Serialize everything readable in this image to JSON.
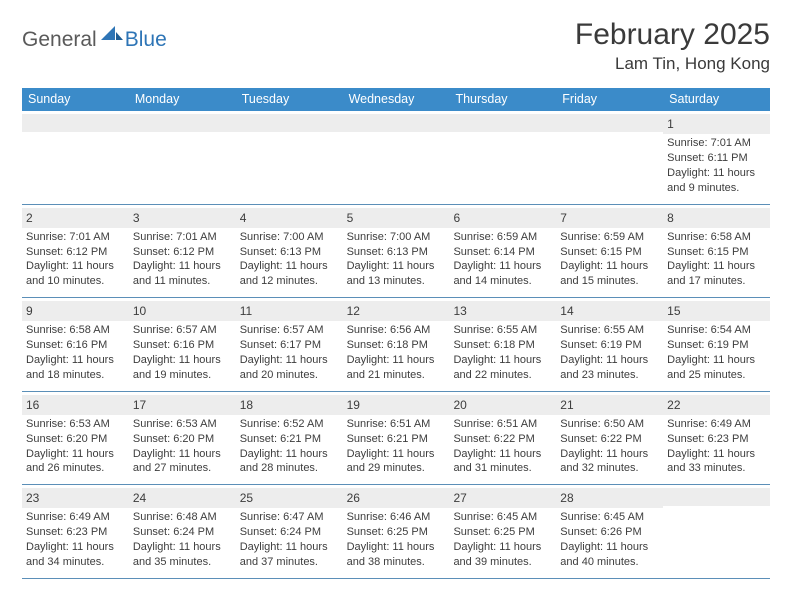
{
  "brand": {
    "part1": "General",
    "part2": "Blue"
  },
  "colors": {
    "header_bar": "#3b8bc9",
    "daynum_bg": "#ededed",
    "rule": "#5b8fb8",
    "brand_blue": "#2e75b6",
    "text": "#3a3a3a"
  },
  "title": "February 2025",
  "location": "Lam Tin, Hong Kong",
  "day_names": [
    "Sunday",
    "Monday",
    "Tuesday",
    "Wednesday",
    "Thursday",
    "Friday",
    "Saturday"
  ],
  "weeks": [
    [
      {
        "n": "",
        "sr": "",
        "ss": "",
        "dl": ""
      },
      {
        "n": "",
        "sr": "",
        "ss": "",
        "dl": ""
      },
      {
        "n": "",
        "sr": "",
        "ss": "",
        "dl": ""
      },
      {
        "n": "",
        "sr": "",
        "ss": "",
        "dl": ""
      },
      {
        "n": "",
        "sr": "",
        "ss": "",
        "dl": ""
      },
      {
        "n": "",
        "sr": "",
        "ss": "",
        "dl": ""
      },
      {
        "n": "1",
        "sr": "Sunrise: 7:01 AM",
        "ss": "Sunset: 6:11 PM",
        "dl": "Daylight: 11 hours and 9 minutes."
      }
    ],
    [
      {
        "n": "2",
        "sr": "Sunrise: 7:01 AM",
        "ss": "Sunset: 6:12 PM",
        "dl": "Daylight: 11 hours and 10 minutes."
      },
      {
        "n": "3",
        "sr": "Sunrise: 7:01 AM",
        "ss": "Sunset: 6:12 PM",
        "dl": "Daylight: 11 hours and 11 minutes."
      },
      {
        "n": "4",
        "sr": "Sunrise: 7:00 AM",
        "ss": "Sunset: 6:13 PM",
        "dl": "Daylight: 11 hours and 12 minutes."
      },
      {
        "n": "5",
        "sr": "Sunrise: 7:00 AM",
        "ss": "Sunset: 6:13 PM",
        "dl": "Daylight: 11 hours and 13 minutes."
      },
      {
        "n": "6",
        "sr": "Sunrise: 6:59 AM",
        "ss": "Sunset: 6:14 PM",
        "dl": "Daylight: 11 hours and 14 minutes."
      },
      {
        "n": "7",
        "sr": "Sunrise: 6:59 AM",
        "ss": "Sunset: 6:15 PM",
        "dl": "Daylight: 11 hours and 15 minutes."
      },
      {
        "n": "8",
        "sr": "Sunrise: 6:58 AM",
        "ss": "Sunset: 6:15 PM",
        "dl": "Daylight: 11 hours and 17 minutes."
      }
    ],
    [
      {
        "n": "9",
        "sr": "Sunrise: 6:58 AM",
        "ss": "Sunset: 6:16 PM",
        "dl": "Daylight: 11 hours and 18 minutes."
      },
      {
        "n": "10",
        "sr": "Sunrise: 6:57 AM",
        "ss": "Sunset: 6:16 PM",
        "dl": "Daylight: 11 hours and 19 minutes."
      },
      {
        "n": "11",
        "sr": "Sunrise: 6:57 AM",
        "ss": "Sunset: 6:17 PM",
        "dl": "Daylight: 11 hours and 20 minutes."
      },
      {
        "n": "12",
        "sr": "Sunrise: 6:56 AM",
        "ss": "Sunset: 6:18 PM",
        "dl": "Daylight: 11 hours and 21 minutes."
      },
      {
        "n": "13",
        "sr": "Sunrise: 6:55 AM",
        "ss": "Sunset: 6:18 PM",
        "dl": "Daylight: 11 hours and 22 minutes."
      },
      {
        "n": "14",
        "sr": "Sunrise: 6:55 AM",
        "ss": "Sunset: 6:19 PM",
        "dl": "Daylight: 11 hours and 23 minutes."
      },
      {
        "n": "15",
        "sr": "Sunrise: 6:54 AM",
        "ss": "Sunset: 6:19 PM",
        "dl": "Daylight: 11 hours and 25 minutes."
      }
    ],
    [
      {
        "n": "16",
        "sr": "Sunrise: 6:53 AM",
        "ss": "Sunset: 6:20 PM",
        "dl": "Daylight: 11 hours and 26 minutes."
      },
      {
        "n": "17",
        "sr": "Sunrise: 6:53 AM",
        "ss": "Sunset: 6:20 PM",
        "dl": "Daylight: 11 hours and 27 minutes."
      },
      {
        "n": "18",
        "sr": "Sunrise: 6:52 AM",
        "ss": "Sunset: 6:21 PM",
        "dl": "Daylight: 11 hours and 28 minutes."
      },
      {
        "n": "19",
        "sr": "Sunrise: 6:51 AM",
        "ss": "Sunset: 6:21 PM",
        "dl": "Daylight: 11 hours and 29 minutes."
      },
      {
        "n": "20",
        "sr": "Sunrise: 6:51 AM",
        "ss": "Sunset: 6:22 PM",
        "dl": "Daylight: 11 hours and 31 minutes."
      },
      {
        "n": "21",
        "sr": "Sunrise: 6:50 AM",
        "ss": "Sunset: 6:22 PM",
        "dl": "Daylight: 11 hours and 32 minutes."
      },
      {
        "n": "22",
        "sr": "Sunrise: 6:49 AM",
        "ss": "Sunset: 6:23 PM",
        "dl": "Daylight: 11 hours and 33 minutes."
      }
    ],
    [
      {
        "n": "23",
        "sr": "Sunrise: 6:49 AM",
        "ss": "Sunset: 6:23 PM",
        "dl": "Daylight: 11 hours and 34 minutes."
      },
      {
        "n": "24",
        "sr": "Sunrise: 6:48 AM",
        "ss": "Sunset: 6:24 PM",
        "dl": "Daylight: 11 hours and 35 minutes."
      },
      {
        "n": "25",
        "sr": "Sunrise: 6:47 AM",
        "ss": "Sunset: 6:24 PM",
        "dl": "Daylight: 11 hours and 37 minutes."
      },
      {
        "n": "26",
        "sr": "Sunrise: 6:46 AM",
        "ss": "Sunset: 6:25 PM",
        "dl": "Daylight: 11 hours and 38 minutes."
      },
      {
        "n": "27",
        "sr": "Sunrise: 6:45 AM",
        "ss": "Sunset: 6:25 PM",
        "dl": "Daylight: 11 hours and 39 minutes."
      },
      {
        "n": "28",
        "sr": "Sunrise: 6:45 AM",
        "ss": "Sunset: 6:26 PM",
        "dl": "Daylight: 11 hours and 40 minutes."
      },
      {
        "n": "",
        "sr": "",
        "ss": "",
        "dl": ""
      }
    ]
  ]
}
